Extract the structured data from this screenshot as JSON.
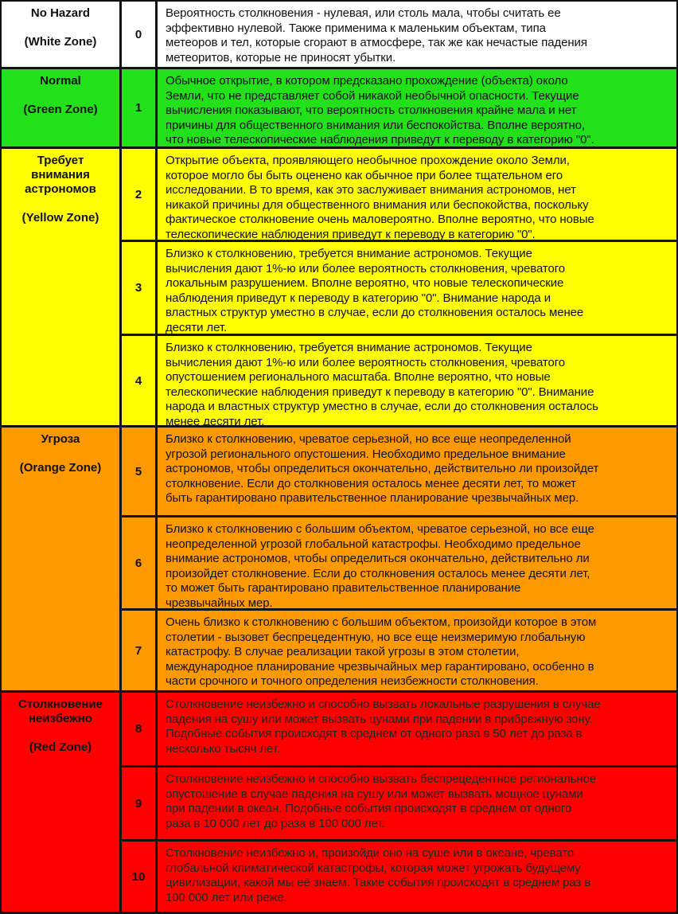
{
  "colors": {
    "white": "#ffffff",
    "green": "#22e01a",
    "yellow": "#ffff00",
    "orange": "#ff9900",
    "red": "#ff0000"
  },
  "zones": [
    {
      "title": "No Hazard",
      "zone": "(White Zone)"
    },
    {
      "title": "Normal",
      "zone": "(Green Zone)"
    },
    {
      "title": "Требует\nвнимания\nастрономов",
      "zone": "(Yellow Zone)"
    },
    {
      "title": "Угроза",
      "zone": "(Orange Zone)"
    },
    {
      "title": "Столкновение\nнеизбежно",
      "zone": "(Red Zone)"
    }
  ],
  "rows": [
    {
      "level": "0",
      "text": "Вероятность столкновения - нулевая, или столь мала, чтобы  считать ее\nэффективно нулевой. Также применима к маленьким объектам, типа\nметеоров и тел, которые сгорают в атмосфере, так же как нечастые падения\nметеоритов, которые не приносят убытки."
    },
    {
      "level": "1",
      "text": "Обычное открытие, в котором предсказано прохождение (объекта) около\nЗемли, что не представляет собой никакой необычной опасности. Текущие\nвычисления показывают, что вероятность столкновения крайне мала и нет\nпричины для общественного внимания или беспокойства. Вполне вероятно,\nчто новые телескопические наблюдения приведут к переводу в категорию \"0\"."
    },
    {
      "level": "2",
      "text": "Открытие объекта, проявляющего необычное прохождение около Земли,\nкоторое могло бы быть оценено как обычное при более тщательном его\nисследовании. В то время, как это заслуживает внимания астрономов, нет\nникакой причины для общественного внимания или беспокойства, поскольку\nфактическое столкновение очень маловероятно. Вполне вероятно, что новые\nтелескопические наблюдения приведут к переводу в категорию \"0\"."
    },
    {
      "level": "3",
      "text": "Близко к столкновению, требуется внимание астрономов. Текущие\nвычисления дают 1%-ю или более вероятность столкновения, чреватого\nлокальным разрушением. Вполне вероятно, что новые телескопические\nнаблюдения приведут к переводу в категорию \"0\".  Внимание народа и\nвластных структур уместно в случае, если до столкновения осталось менее\nдесяти лет."
    },
    {
      "level": "4",
      "text": "Близко к столкновению, требуется внимание астрономов. Текущие\nвычисления дают 1%-ю или более вероятность столкновения, чреватого\nопустошением регионального масштаба. Вполне вероятно, что новые\nтелескопические наблюдения приведут к переводу в категорию \"0\".  Внимание\nнарода и властных структур уместно в случае, если до столкновения осталось\nменее десяти лет."
    },
    {
      "level": "5",
      "text": "Близко к столкновению, чреватое серьезной, но все еще неопределенной\nугрозой регионального опустошения. Необходимо предельное внимание\nастрономов, чтобы определиться окончательно, действительно ли произойдет\nстолкновение. Если до столкновения осталось менее десяти лет, то может\nбыть гарантировано правительственное планирование чрезвычайных мер."
    },
    {
      "level": "6",
      "text": "Близко к  столкновению с большим объектом, чреватое серьезной, но все еще\nнеопределенной угрозой глобальной катастрофы. Необходимо предельное\nвнимание астрономов, чтобы определиться окончательно, действительно ли\nпроизойдет столкновение. Если до столкновения осталось менее десяти лет,\nто может быть гарантировано правительственное планирование\nчрезвычайных мер."
    },
    {
      "level": "7",
      "text": "Очень близко к столкновению с большим объектом, произойди которое в этом\nстолетии - вызовет беспрецедентную, но все еще неизмеримую глобальную\nкатастрофу. В случае реализации такой угрозы в этом столетии,\nмеждународное планирование чрезвычайных мер гарантировано, особенно в\nчасти срочного и точного определения неизбежности  столкновения."
    },
    {
      "level": "8",
      "text": "Столкновение неизбежно и способно вызвать локальные разрушения в случае\nпадения на сушу или может вызвать цунами при падении в прибрежную зону.\nПодобные события происходят в среднем от одного раза в 50 лет до раза в\nнесколько тысяч лет."
    },
    {
      "level": "9",
      "text": "Столкновение неизбежно и способно вызвать беспрецедентное региональное\nопустошение в случае падения на сушу или может вызвать мощное цунами\nпри падении в  океан. Подобные события происходят в среднем от одного\nраза в 10 000 лет до раза в 100 000 лет."
    },
    {
      "level": "10",
      "text": "Столкновение неизбежно и, произойди оно на суше или в океане, чревато\nглобальной климатической катастрофы, которая может угрожать будущему\nцивилизации, какой мы её знаем. Такие события происходят в среднем раз в\n100 000 лет или реже."
    }
  ]
}
